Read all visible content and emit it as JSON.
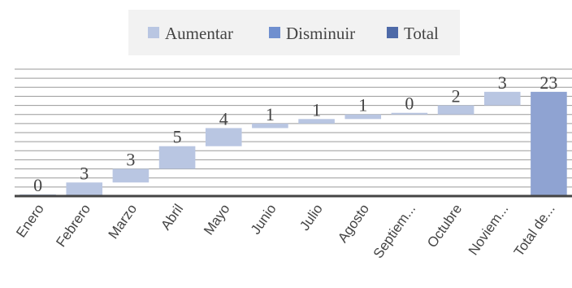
{
  "legend": {
    "increase_label": "Aumentar",
    "decrease_label": "Disminuir",
    "total_label": "Total"
  },
  "colors": {
    "increase": "#b9c6e2",
    "decrease": "#6f8fcf",
    "total": "#8fa3d2",
    "legend_total": "#4e6aa8",
    "axis": "#444444",
    "grid": "#9a9a9a",
    "text": "#444444",
    "legend_bg": "#f2f2f2"
  },
  "chart_data": {
    "type": "bar",
    "subtype": "waterfall",
    "categories": [
      "Enero",
      "Febrero",
      "Marzo",
      "Abril",
      "Mayo",
      "Junio",
      "Julio",
      "Agosto",
      "Septiem...",
      "Octubre",
      "Noviem...",
      "Total de..."
    ],
    "values": [
      0,
      3,
      3,
      5,
      4,
      1,
      1,
      1,
      0,
      2,
      3,
      23
    ],
    "data_labels": [
      "0",
      "3",
      "3",
      "5",
      "4",
      "1",
      "1",
      "1",
      "0",
      "2",
      "3",
      "23"
    ],
    "kinds": [
      "increase",
      "increase",
      "increase",
      "increase",
      "increase",
      "increase",
      "increase",
      "increase",
      "increase",
      "increase",
      "increase",
      "total"
    ],
    "ylim": [
      0,
      28
    ],
    "grid": true,
    "legend_position": "top"
  }
}
